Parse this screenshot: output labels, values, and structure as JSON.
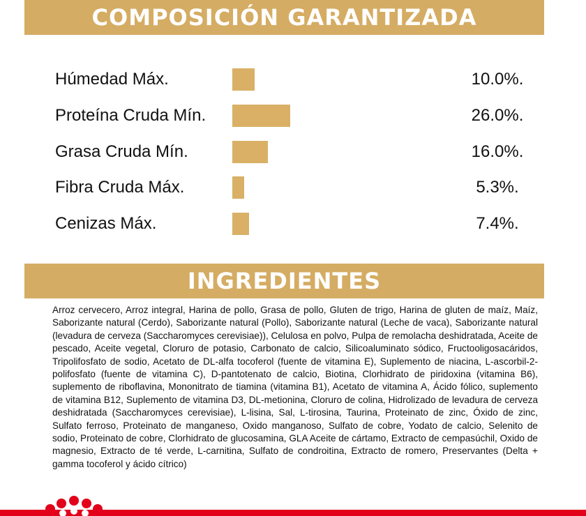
{
  "composition": {
    "title": "COMPOSICIÓN GARANTIZADA",
    "rows": [
      {
        "label": "Húmedad Máx.",
        "value": 10.0,
        "value_label": "10.0%."
      },
      {
        "label": "Proteína Cruda Mín.",
        "value": 26.0,
        "value_label": "26.0%."
      },
      {
        "label": "Grasa Cruda Mín.",
        "value": 16.0,
        "value_label": "16.0%."
      },
      {
        "label": "Fibra Cruda Máx.",
        "value": 5.3,
        "value_label": "5.3%."
      },
      {
        "label": "Cenizas Máx.",
        "value": 7.4,
        "value_label": "7.4%."
      }
    ]
  },
  "ingredients": {
    "title": "INGREDIENTES",
    "text": "Arroz cervecero, Arroz integral, Harina de pollo, Grasa de pollo, Gluten de trigo, Harina de gluten de maíz, Maíz, Saborizante natural (Cerdo), Saborizante natural (Pollo), Saborizante natural (Leche de vaca), Saborizante natural (levadura de cerveza (Saccharomyces cerevisiae)), Celulosa en polvo, Pulpa de remolacha deshidratada, Aceite de pescado, Aceite vegetal, Cloruro de potasio, Carbonato de calcio, Silicoaluminato sódico, Fructooligosacáridos, Tripolifosfato de sodio, Acetato de DL-alfa tocoferol (fuente de vitamina E), Suplemento de niacina, L-ascorbil-2-polifosfato (fuente de vitamina C), D-pantotenato de calcio, Biotina, Clorhidrato de piridoxina (vitamina B6), suplemento de riboflavina, Mononitrato de tiamina (vitamina B1), Acetato de vitamina A, Ácido fólico, suplemento de vitamina B12, Suplemento de vitamina D3, DL-metionina, Cloruro de colina, Hidrolizado de levadura de cerveza deshidratada (Saccharomyces cerevisiae), L-lisina, Sal, L-tirosina, Taurina, Proteinato de zinc, Óxido de zinc, Sulfato ferroso, Proteinato de manganeso, Oxido manganoso, Sulfato de cobre, Yodato de calcio, Selenito de sodio, Proteinato de cobre, Clorhidrato de glucosamina, GLA Aceite de cártamo, Extracto de cempasúchil, Oxido de magnesio, Extracto de té verde, L-carnitina, Sulfato de condroitina, Extracto de romero, Preservantes (Delta + gamma tocoferol y ácido cítrico)"
  }
}
